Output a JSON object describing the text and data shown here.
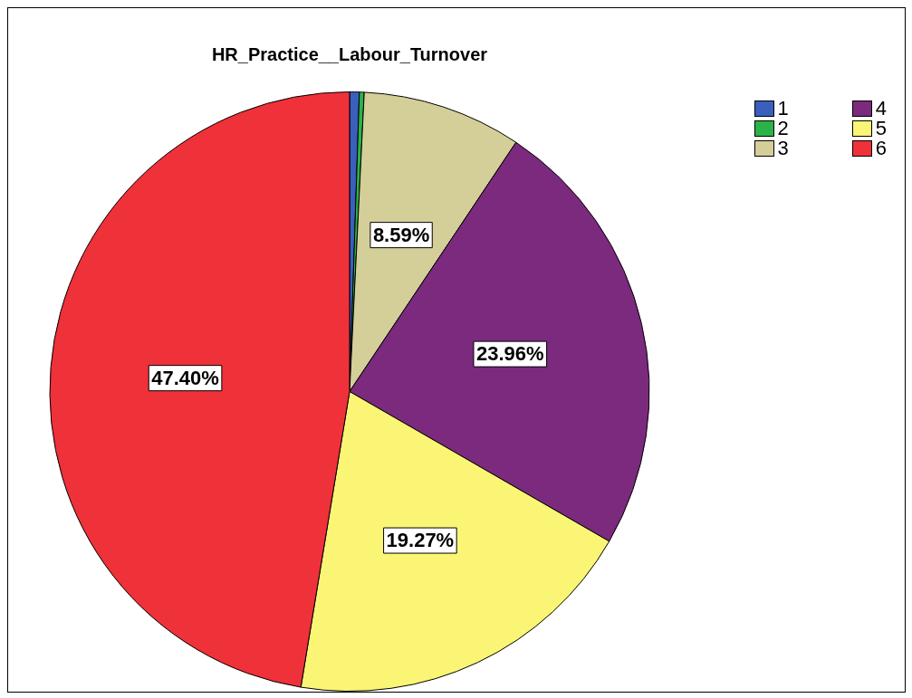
{
  "chart_data": {
    "type": "pie",
    "title": "HR_Practice__Labour_Turnover",
    "categories": [
      "1",
      "2",
      "3",
      "4",
      "5",
      "6"
    ],
    "values": [
      0.52,
      0.26,
      8.59,
      23.96,
      19.27,
      47.4
    ],
    "value_labels": [
      null,
      null,
      "8.59%",
      "23.96%",
      "19.27%",
      "47.40%"
    ],
    "colors": [
      "#3a5fbd",
      "#2bb34a",
      "#d4cf99",
      "#7b2a7e",
      "#faf574",
      "#ef3139"
    ],
    "legend": "top right"
  }
}
